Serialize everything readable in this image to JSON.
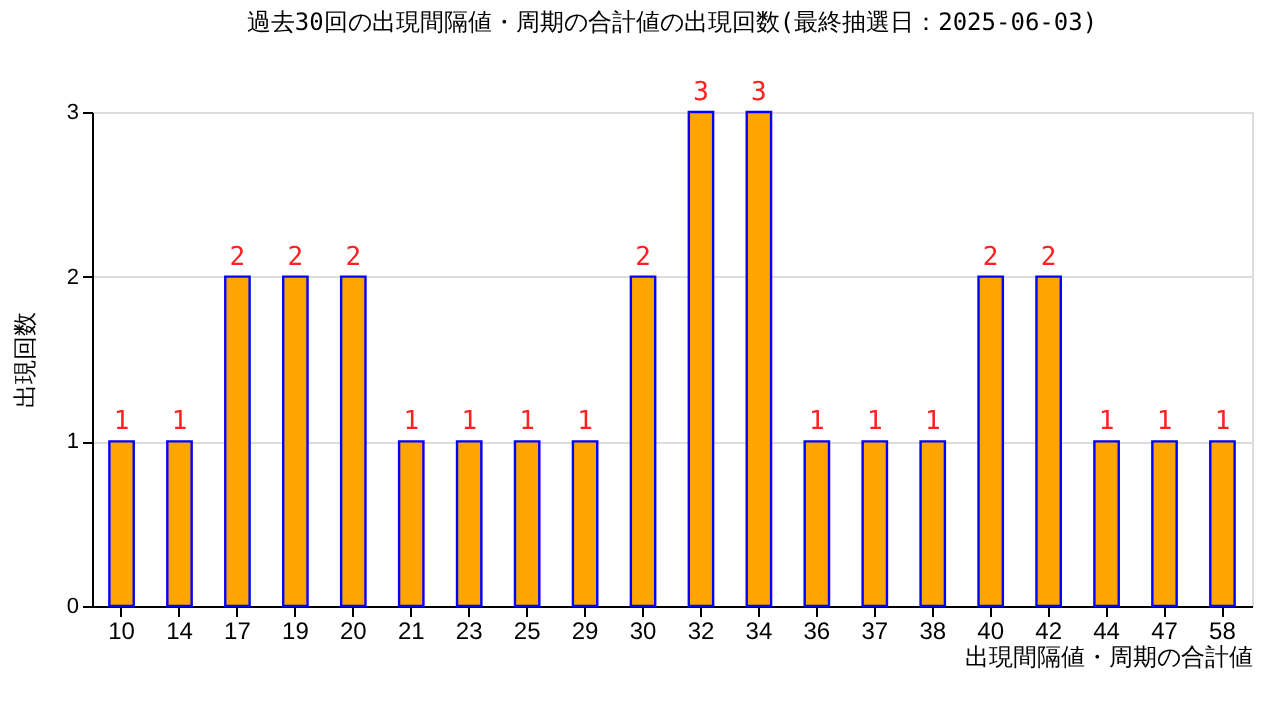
{
  "chart_data": {
    "type": "bar",
    "title": "過去30回の出現間隔値・周期の合計値の出現回数(最終抽選日：2025-06-03)",
    "xlabel": "出現間隔値・周期の合計値",
    "ylabel": "出現回数",
    "categories": [
      "10",
      "14",
      "17",
      "19",
      "20",
      "21",
      "23",
      "25",
      "29",
      "30",
      "32",
      "34",
      "36",
      "37",
      "38",
      "40",
      "42",
      "44",
      "47",
      "58"
    ],
    "values": [
      1,
      1,
      2,
      2,
      2,
      1,
      1,
      1,
      1,
      2,
      3,
      3,
      1,
      1,
      1,
      2,
      2,
      1,
      1,
      1
    ],
    "color": "#ffa500",
    "ylim": [
      0,
      3
    ],
    "yticks": [
      0,
      1,
      2,
      3
    ],
    "grid": "y",
    "data_labels": true
  }
}
